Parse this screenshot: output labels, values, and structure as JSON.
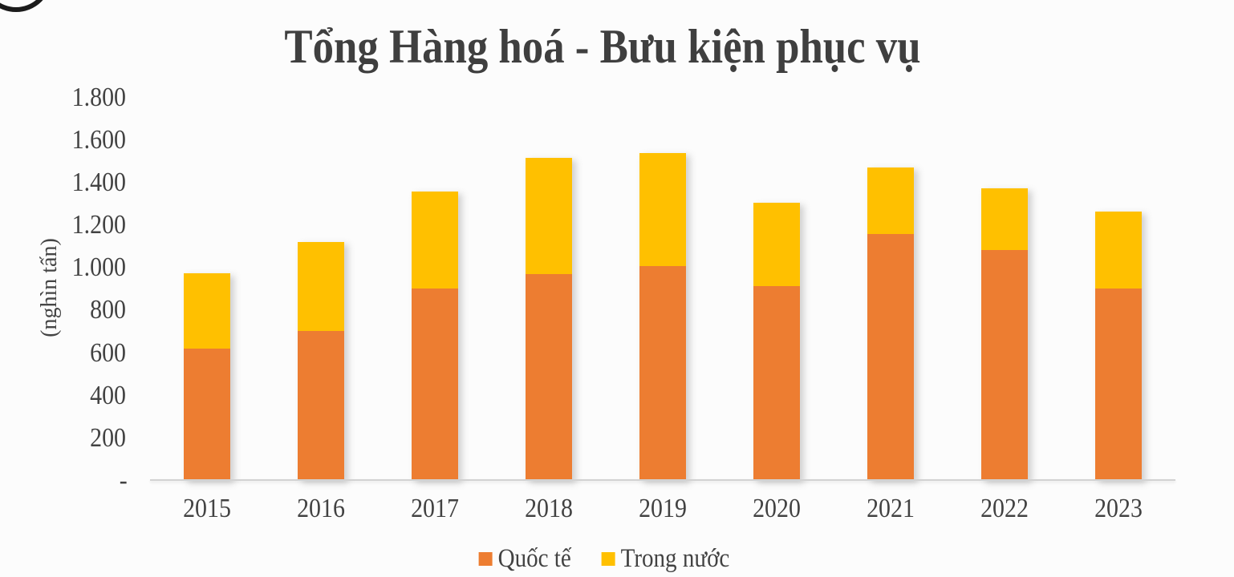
{
  "title": "Tổng Hàng hoá - Bưu kiện phục vụ",
  "y_axis_title": "(nghìn tấn)",
  "colors": {
    "quoc_te": "#ED7D31",
    "trong_nuoc": "#FFC000",
    "text": "#404040",
    "axis_line": "#D2D2D2"
  },
  "legend": [
    {
      "label": "Quốc tế",
      "color": "#ED7D31"
    },
    {
      "label": "Trong nước",
      "color": "#FFC000"
    }
  ],
  "chart_data": {
    "type": "bar",
    "stacked": true,
    "title": "Tổng Hàng hoá - Bưu kiện phục vụ",
    "ylabel": "(nghìn tấn)",
    "categories": [
      "2015",
      "2016",
      "2017",
      "2018",
      "2019",
      "2020",
      "2021",
      "2022",
      "2023"
    ],
    "series": [
      {
        "name": "Quốc tế",
        "color": "#ED7D31",
        "values": [
          620,
          705,
          905,
          970,
          1010,
          915,
          1160,
          1085,
          905
        ]
      },
      {
        "name": "Trong nước",
        "color": "#FFC000",
        "values": [
          355,
          415,
          455,
          545,
          530,
          390,
          310,
          290,
          360
        ]
      }
    ],
    "ylim": [
      0,
      1800
    ],
    "ytick_step": 200,
    "ytick_labels": [
      "-",
      "200",
      "400",
      "600",
      "800",
      "1.000",
      "1.200",
      "1.400",
      "1.600",
      "1.800"
    ],
    "grid": false,
    "legend_position": "bottom"
  }
}
